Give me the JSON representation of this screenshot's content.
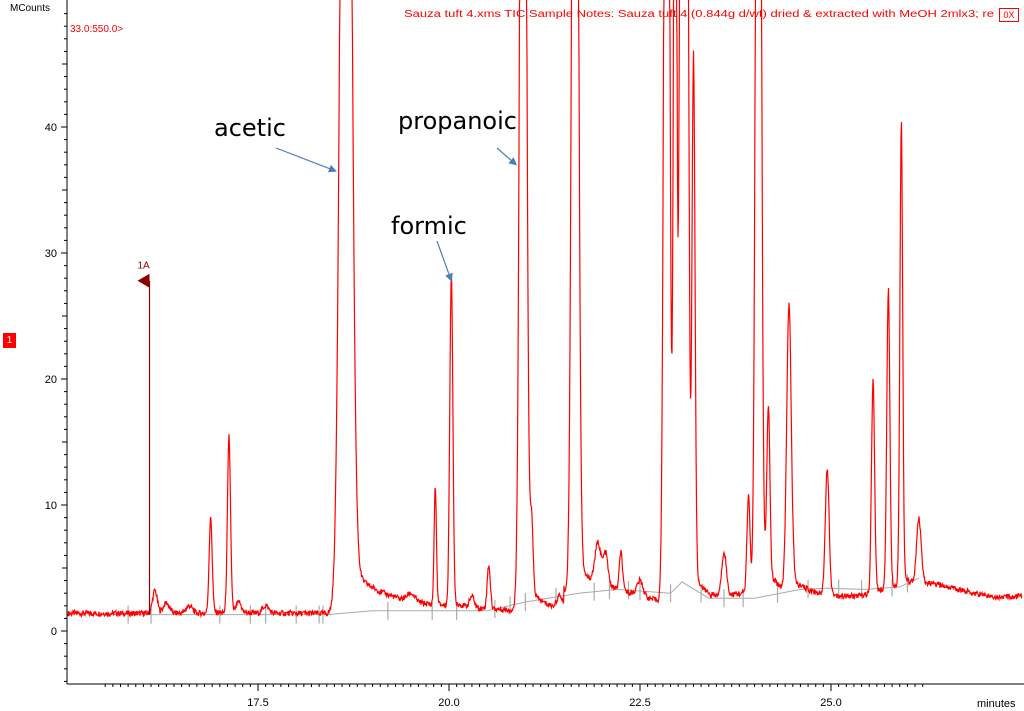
{
  "header": {
    "title": "Sauza tuft 4.xms TIC Sample Notes: Sauza tuft 4 (0.844g d/wt) dried & extracted with MeOH 2mlx3; re",
    "mass_range": "33.0:550.0>",
    "channel_badge": "1",
    "close_label": "0X"
  },
  "colors": {
    "trace": "#ff0000",
    "baseline": "#aaaaaa",
    "marker": "#8b0000",
    "arrow": "#4a7ebb"
  },
  "chart_data": {
    "type": "line",
    "title": "",
    "xlabel": "minutes",
    "ylabel": "MCounts",
    "xlim": [
      15.5,
      26.2
    ],
    "ylim": [
      -5,
      50
    ],
    "x_ticks": [
      17.5,
      20.0,
      22.5,
      25.0
    ],
    "x_tick_labels": [
      "17.5",
      "20.0",
      "22.5",
      "25.0"
    ],
    "y_ticks": [
      0,
      10,
      20,
      30,
      40
    ],
    "y_tick_labels": [
      "0",
      "10",
      "20",
      "30",
      "40"
    ],
    "series": [
      {
        "baseline": 1.4,
        "peaks": [
          {
            "rt": 16.15,
            "height": 1.8,
            "width": 0.03
          },
          {
            "rt": 16.3,
            "height": 0.8,
            "width": 0.04
          },
          {
            "rt": 16.6,
            "height": 0.6,
            "width": 0.04
          },
          {
            "rt": 16.88,
            "height": 7.5,
            "width": 0.02
          },
          {
            "rt": 17.12,
            "height": 13.8,
            "width": 0.02
          },
          {
            "rt": 17.25,
            "height": 0.8,
            "width": 0.03
          },
          {
            "rt": 17.6,
            "height": 0.6,
            "width": 0.04
          },
          {
            "rt": 18.65,
            "height": 120,
            "width": 0.06
          },
          {
            "rt": 19.5,
            "height": 0.6,
            "width": 0.05
          },
          {
            "rt": 19.82,
            "height": 9.3,
            "width": 0.015
          },
          {
            "rt": 20.03,
            "height": 26.2,
            "width": 0.02
          },
          {
            "rt": 20.3,
            "height": 0.9,
            "width": 0.03
          },
          {
            "rt": 20.52,
            "height": 3.5,
            "width": 0.02
          },
          {
            "rt": 20.97,
            "height": 120,
            "width": 0.035
          },
          {
            "rt": 21.08,
            "height": 5.8,
            "width": 0.02
          },
          {
            "rt": 21.45,
            "height": 1.0,
            "width": 0.04
          },
          {
            "rt": 21.65,
            "height": 120,
            "width": 0.035
          },
          {
            "rt": 21.95,
            "height": 3.2,
            "width": 0.04
          },
          {
            "rt": 22.05,
            "height": 2.5,
            "width": 0.03
          },
          {
            "rt": 22.25,
            "height": 3.0,
            "width": 0.02
          },
          {
            "rt": 22.5,
            "height": 1.2,
            "width": 0.04
          },
          {
            "rt": 22.85,
            "height": 120,
            "width": 0.03
          },
          {
            "rt": 22.96,
            "height": 80,
            "width": 0.02
          },
          {
            "rt": 23.05,
            "height": 120,
            "width": 0.025
          },
          {
            "rt": 23.12,
            "height": 60,
            "width": 0.02
          },
          {
            "rt": 23.2,
            "height": 41,
            "width": 0.02
          },
          {
            "rt": 23.6,
            "height": 3.5,
            "width": 0.03
          },
          {
            "rt": 23.92,
            "height": 7.6,
            "width": 0.02
          },
          {
            "rt": 24.05,
            "height": 120,
            "width": 0.03
          },
          {
            "rt": 24.18,
            "height": 13.5,
            "width": 0.02
          },
          {
            "rt": 24.45,
            "height": 22.5,
            "width": 0.03
          },
          {
            "rt": 24.95,
            "height": 10,
            "width": 0.025
          },
          {
            "rt": 25.55,
            "height": 16.8,
            "width": 0.02
          },
          {
            "rt": 25.75,
            "height": 23.5,
            "width": 0.02
          },
          {
            "rt": 25.92,
            "height": 36.5,
            "width": 0.018
          },
          {
            "rt": 26.15,
            "height": 5,
            "width": 0.03
          }
        ]
      }
    ],
    "annotations": [
      {
        "label": "acetic",
        "rt": 18.52,
        "value": 36.5
      },
      {
        "label": "propanoic",
        "rt": 20.88,
        "value": 37.0
      },
      {
        "label": "formic",
        "rt": 20.03,
        "value": 27.8
      }
    ],
    "marker": {
      "label": "1A",
      "rt": 16.08,
      "value": 27.8
    }
  }
}
